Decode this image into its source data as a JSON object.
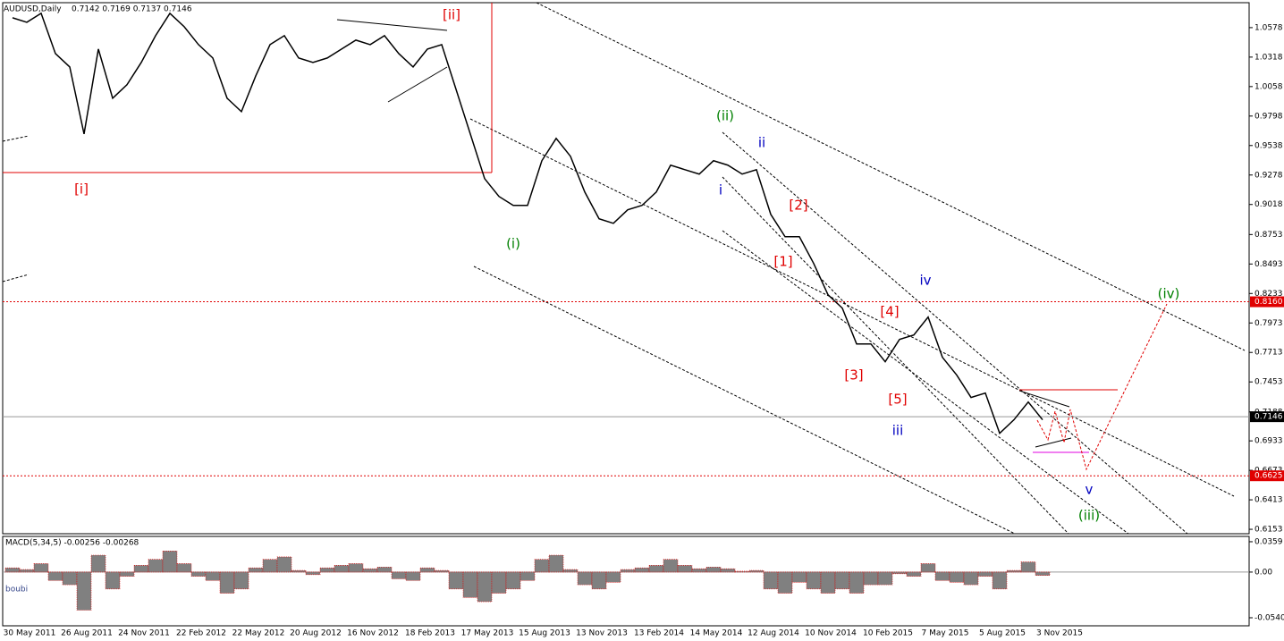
{
  "chart_data": [
    {
      "type": "line",
      "title": "AUDUSD,Daily",
      "ohlc": "0.7142 0.7169 0.7137 0.7146",
      "color": "#000000",
      "categories": [
        null,
        "30 May 2011",
        null,
        null,
        null,
        "26 Aug 2011",
        null,
        null,
        null,
        "24 Nov 2011",
        null,
        null,
        null,
        "22 Feb 2012",
        null,
        null,
        null,
        "22 May 2012",
        null,
        null,
        null,
        "20 Aug 2012",
        null,
        null,
        null,
        "16 Nov 2012",
        null,
        null,
        null,
        "18 Feb 2013",
        null,
        null,
        null,
        "17 May 2013",
        null,
        null,
        null,
        "15 Aug 2013",
        null,
        null,
        null,
        "13 Nov 2013",
        null,
        null,
        null,
        "13 Feb 2014",
        null,
        null,
        null,
        "14 May 2014",
        null,
        null,
        null,
        "12 Aug 2014",
        null,
        null,
        null,
        "10 Nov 2014",
        null,
        null,
        null,
        "10 Feb 2015",
        null,
        null,
        null,
        "7 May 2015",
        null,
        null,
        null,
        "5 Aug 2015",
        null,
        null,
        null,
        "3 Nov 2015"
      ],
      "values": [
        1.0665,
        1.0625,
        1.0704,
        1.0349,
        1.0231,
        0.964,
        1.0389,
        0.9955,
        1.0074,
        1.0271,
        1.0507,
        1.0704,
        1.0586,
        1.0428,
        1.031,
        0.9955,
        0.9837,
        1.0152,
        1.0428,
        1.0507,
        1.031,
        1.0271,
        1.031,
        1.0389,
        1.0468,
        1.0428,
        1.0507,
        1.0349,
        1.0231,
        1.0389,
        1.0428,
        1.0034,
        0.964,
        0.9246,
        0.9089,
        0.901,
        0.901,
        0.9404,
        0.9601,
        0.9443,
        0.9128,
        0.8892,
        0.8852,
        0.8971,
        0.901,
        0.9128,
        0.9365,
        0.9325,
        0.9286,
        0.9404,
        0.9365,
        0.9286,
        0.9325,
        0.8931,
        0.8734,
        0.8734,
        0.8498,
        0.8222,
        0.8104,
        0.7788,
        0.7788,
        0.7631,
        0.7828,
        0.7867,
        0.8025,
        0.767,
        0.7513,
        0.7316,
        0.7355,
        0.7,
        0.7119,
        0.7276,
        0.7119,
        null
      ],
      "ylim": [
        0.6114,
        1.0798
      ],
      "yticks": [
        1.0578,
        1.0318,
        1.0058,
        0.9798,
        0.9538,
        0.9278,
        0.9018,
        0.8753,
        0.8493,
        0.8233,
        0.7973,
        0.7713,
        0.7453,
        0.7188,
        0.6933,
        0.6673,
        0.6413,
        0.6153
      ],
      "levels": [
        {
          "value": 0.816,
          "label": "0.8160",
          "color": "#e00000"
        },
        {
          "value": 0.7146,
          "label": "0.7146",
          "color": "#000000"
        },
        {
          "value": 0.6625,
          "label": "0.6625",
          "color": "#e00000"
        }
      ],
      "annotations": [
        {
          "text": "[ii]",
          "color": "#e00000"
        },
        {
          "text": "[i]",
          "color": "#e00000"
        },
        {
          "text": "(i)",
          "color": "#008000"
        },
        {
          "text": "(ii)",
          "color": "#008000"
        },
        {
          "text": "ii",
          "color": "#0000c0"
        },
        {
          "text": "i",
          "color": "#0000c0"
        },
        {
          "text": "[2]",
          "color": "#e00000"
        },
        {
          "text": "[1]",
          "color": "#e00000"
        },
        {
          "text": "[4]",
          "color": "#e00000"
        },
        {
          "text": "[3]",
          "color": "#e00000"
        },
        {
          "text": "[5]",
          "color": "#e00000"
        },
        {
          "text": "iii",
          "color": "#0000c0"
        },
        {
          "text": "iv",
          "color": "#0000c0"
        },
        {
          "text": "(iv)",
          "color": "#008000"
        },
        {
          "text": "v",
          "color": "#0000c0"
        },
        {
          "text": "(iii)",
          "color": "#008000"
        }
      ]
    },
    {
      "type": "bar",
      "title": "MACD(5,34,5) -0.00256 -0.00268",
      "label": "boubi",
      "color": "#808080",
      "values": [
        0.005,
        0.003,
        0.01,
        -0.01,
        -0.015,
        -0.045,
        0.02,
        -0.02,
        -0.005,
        0.008,
        0.015,
        0.025,
        0.01,
        -0.005,
        -0.01,
        -0.025,
        -0.02,
        0.005,
        0.015,
        0.018,
        0.002,
        -0.003,
        0.005,
        0.008,
        0.01,
        0.004,
        0.006,
        -0.008,
        -0.01,
        0.005,
        0.002,
        -0.02,
        -0.03,
        -0.035,
        -0.025,
        -0.02,
        -0.01,
        0.015,
        0.02,
        0.003,
        -0.015,
        -0.02,
        -0.012,
        0.003,
        0.005,
        0.008,
        0.015,
        0.008,
        0.004,
        0.006,
        0.004,
        0.001,
        0.002,
        -0.02,
        -0.025,
        -0.012,
        -0.02,
        -0.025,
        -0.02,
        -0.025,
        -0.015,
        -0.015,
        -0.002,
        -0.005,
        0.01,
        -0.01,
        -0.012,
        -0.015,
        -0.005,
        -0.02,
        0.002,
        0.012,
        -0.004,
        null
      ],
      "ylim": [
        -0.0635,
        0.0422
      ],
      "yticks": [
        0.0359,
        {
          "value": 0,
          "label": "0.00"
        },
        {
          "value": -0.054,
          "label": "-0.0540"
        }
      ]
    }
  ]
}
